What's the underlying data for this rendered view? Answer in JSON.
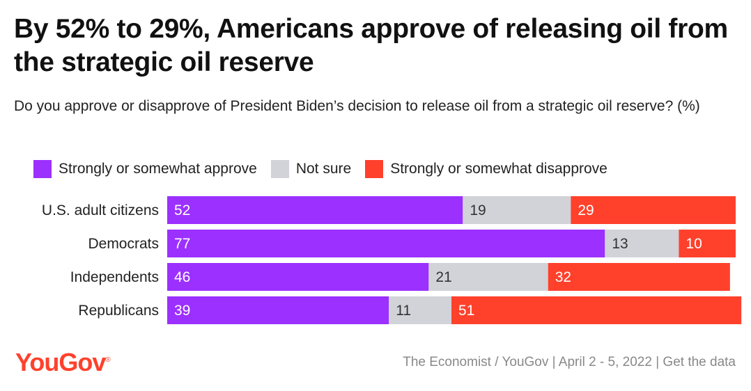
{
  "title": "By 52% to 29%, Americans approve of releasing oil from the strategic oil reserve",
  "subtitle": "Do you approve or disapprove of President Biden’s decision to release oil from a strategic oil reserve? (%)",
  "legend": [
    {
      "label": "Strongly or somewhat approve",
      "color": "#9b30ff"
    },
    {
      "label": "Not sure",
      "color": "#d1d3d9"
    },
    {
      "label": "Strongly or somewhat disapprove",
      "color": "#ff412c"
    }
  ],
  "chart_data": {
    "type": "bar",
    "orientation": "horizontal",
    "stacked": true,
    "categories": [
      "U.S. adult citizens",
      "Democrats",
      "Independents",
      "Republicans"
    ],
    "series": [
      {
        "name": "Strongly or somewhat approve",
        "color": "#9b30ff",
        "label_color": "#ffffff",
        "values": [
          52,
          77,
          46,
          39
        ]
      },
      {
        "name": "Not sure",
        "color": "#d1d3d9",
        "label_color": "#333333",
        "values": [
          19,
          13,
          21,
          11
        ]
      },
      {
        "name": "Strongly or somewhat disapprove",
        "color": "#ff412c",
        "label_color": "#ffffff",
        "values": [
          29,
          10,
          32,
          51
        ]
      }
    ],
    "xlim": [
      0,
      100
    ],
    "legend_position": "top-left",
    "grid": false
  },
  "footer": {
    "logo": "YouGov",
    "logo_mark": "®",
    "source": "The Economist / YouGov | April 2 - 5, 2022 | Get the data"
  }
}
